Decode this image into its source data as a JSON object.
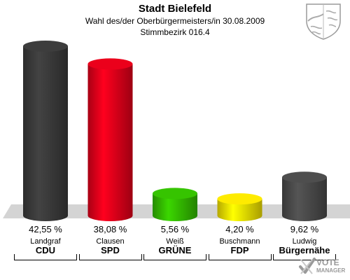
{
  "header": {
    "title": "Stadt Bielefeld",
    "subtitle": "Wahl des/der Oberbürgermeisters/in 30.08.2009",
    "district": "Stimmbezirk 016.4"
  },
  "logo": {
    "line1": "VOTE",
    "line2": "MANAGER"
  },
  "chart_data": {
    "type": "bar",
    "categories": [
      "CDU",
      "SPD",
      "GRÜNE",
      "FDP",
      "Bürgernähe"
    ],
    "candidates": [
      "Landgraf",
      "Clausen",
      "Weiß",
      "Buschmann",
      "Ludwig"
    ],
    "values": [
      42.55,
      38.08,
      5.56,
      4.2,
      9.62
    ],
    "value_labels": [
      "42,55 %",
      "38,08 %",
      "5,56 %",
      "4,20 %",
      "9,62 %"
    ],
    "colors": [
      "#3a3a3a",
      "#e0001a",
      "#33bb00",
      "#f2e000",
      "#4a4a4a"
    ],
    "ylim": [
      0,
      45
    ],
    "grid": false
  }
}
